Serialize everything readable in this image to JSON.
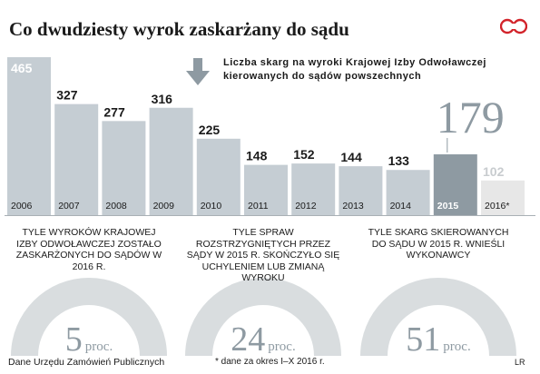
{
  "title": "Co dwudziesty wyrok zaskarżany do sądu",
  "logo_text": "CP",
  "legend": "Liczba skarg na wyroki Krajowej Izby Odwoławczej kierowanych do sądów powszechnych",
  "chart_data": {
    "type": "bar",
    "categories": [
      "2006",
      "2007",
      "2008",
      "2009",
      "2010",
      "2011",
      "2012",
      "2013",
      "2014",
      "2015",
      "2016*"
    ],
    "values": [
      465,
      327,
      277,
      316,
      225,
      148,
      152,
      144,
      133,
      179,
      102
    ],
    "value_labels": [
      "465",
      "327",
      "277",
      "316",
      "225",
      "148",
      "152",
      "144",
      "133",
      "179",
      "102"
    ],
    "ylim": [
      0,
      465
    ],
    "highlight": "2015",
    "colors": {
      "bar": "#c5cdd3",
      "highlight": "#8e9aa2",
      "partial": "#e7e7e7",
      "gauge": "#d9dddf"
    }
  },
  "gauges": [
    {
      "label": "Tyle wyroków Krajowej Izby Odwoławczej zostało zaskarżonych do sądów w 2016 r.",
      "value": "5",
      "unit": "proc.",
      "percent": 5
    },
    {
      "label": "Tyle spraw rozstrzygniętych przez sądy w 2015 r. skończyło się uchyleniem lub zmianą wyroku",
      "value": "24",
      "unit": "proc.",
      "percent": 24
    },
    {
      "label": "Tyle skarg skierowanych do sądu w 2015 r. wnieśli wykonawcy",
      "value": "51",
      "unit": "proc.",
      "percent": 51
    }
  ],
  "footer": {
    "source": "Dane Urzędu Zamówień Publicznych",
    "note": "* dane za okres I–X 2016 r.",
    "author": "LR"
  }
}
